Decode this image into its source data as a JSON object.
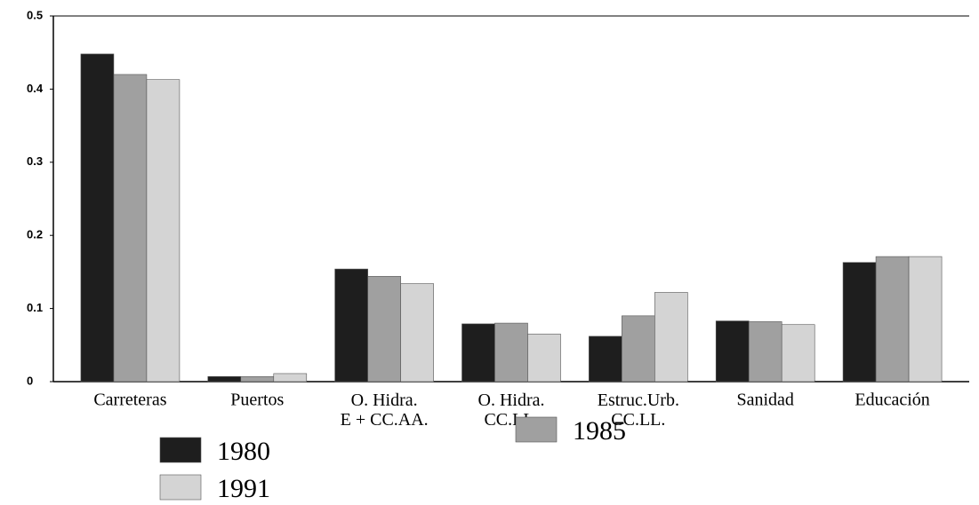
{
  "chart_data": {
    "type": "bar",
    "categories": [
      "Carreteras",
      "Puertos",
      "O. Hidra.\nE + CC.AA.",
      "O. Hidra.\nCC.LL.",
      "Estruc.Urb.\nCC.LL.",
      "Sanidad",
      "Educación"
    ],
    "series": [
      {
        "name": "1980",
        "color": "#1e1e1e",
        "values": [
          0.448,
          0.007,
          0.154,
          0.079,
          0.062,
          0.083,
          0.163
        ]
      },
      {
        "name": "1985",
        "color": "#a0a0a0",
        "values": [
          0.42,
          0.007,
          0.144,
          0.08,
          0.09,
          0.082,
          0.171
        ]
      },
      {
        "name": "1991",
        "color": "#d4d4d4",
        "values": [
          0.413,
          0.011,
          0.134,
          0.065,
          0.122,
          0.078,
          0.171
        ]
      }
    ],
    "ylim": [
      0,
      0.5
    ],
    "yticks": [
      0,
      0.1,
      0.2,
      0.3,
      0.4,
      0.5
    ]
  }
}
